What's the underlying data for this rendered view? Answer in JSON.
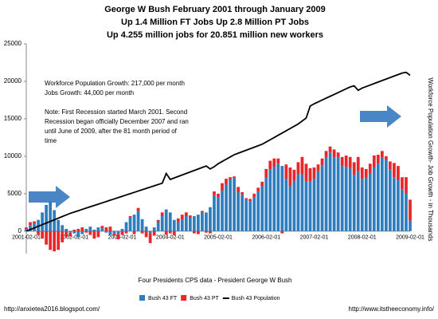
{
  "chart_data": {
    "type": "bar",
    "title_lines": [
      "George W Bush February 2001 through January 2009",
      "Up 1.4 Million FT Jobs Up 2.8 Million PT Jobs",
      "Up 4.255 million jobs for 20.851 million new workers"
    ],
    "x_label": "Four Presidents CPS data - President George W Bush",
    "y_label": "Workforce Population Growth- Job Growth - in Thousands",
    "annotations": [
      "Workforce Population Growth: 217,000 per month",
      "Jobs Growth:  44,000 per month",
      "Note: First Recession started March 2001. Second",
      "Recession began officially December 2007 and ran",
      "until June of 2009, after the 81 month period of",
      "time"
    ],
    "footer_left": "http://anxietea2016.blogspot.com/",
    "footer_right": "http://www.itstheeconomy.info/",
    "legend": "bottom",
    "ylim": [
      -3000,
      25000
    ],
    "yticks": [
      0,
      5000,
      10000,
      15000,
      20000,
      25000
    ],
    "categories": [
      "2001-02-01",
      null,
      null,
      null,
      null,
      null,
      null,
      null,
      null,
      null,
      null,
      null,
      "2002-02-01",
      null,
      null,
      null,
      null,
      null,
      null,
      null,
      null,
      null,
      null,
      null,
      "2003-02-01",
      null,
      null,
      null,
      null,
      null,
      null,
      null,
      null,
      null,
      null,
      null,
      "2004-02-01",
      null,
      null,
      null,
      null,
      null,
      null,
      null,
      null,
      null,
      null,
      null,
      "2005-02-01",
      null,
      null,
      null,
      null,
      null,
      null,
      null,
      null,
      null,
      null,
      null,
      "2006-02-01",
      null,
      null,
      null,
      null,
      null,
      null,
      null,
      null,
      null,
      null,
      null,
      "2007-02-01",
      null,
      null,
      null,
      null,
      null,
      null,
      null,
      null,
      null,
      null,
      null,
      "2008-02-01",
      null,
      null,
      null,
      null,
      null,
      null,
      null,
      null,
      null,
      null,
      null,
      "2009-02-01"
    ],
    "series": [
      {
        "name": "Bush 43 FT",
        "color": "#2e7ebf",
        "kind": "bar",
        "values": [
          300,
          800,
          1000,
          1500,
          2500,
          3500,
          4000,
          2800,
          1500,
          800,
          300,
          -200,
          -300,
          -800,
          -400,
          300,
          600,
          200,
          500,
          400,
          -200,
          -500,
          -300,
          -400,
          300,
          1200,
          1800,
          2200,
          2700,
          1600,
          600,
          -300,
          500,
          1200,
          2000,
          2900,
          2500,
          1500,
          1200,
          1500,
          2000,
          1800,
          2000,
          2200,
          2500,
          2500,
          3200,
          4800,
          4500,
          5400,
          6200,
          6900,
          7100,
          5200,
          4900,
          4200,
          4000,
          4500,
          5300,
          6000,
          7100,
          8200,
          8600,
          9000,
          8700,
          7000,
          6000,
          6700,
          7600,
          7600,
          6700,
          6600,
          7000,
          8000,
          8800,
          9800,
          10500,
          9800,
          9800,
          8700,
          8600,
          8400,
          7500,
          8000,
          7000,
          7100,
          7700,
          8500,
          9000,
          9800,
          9500,
          8200,
          7200,
          6800,
          5600,
          5000,
          1400
        ]
      },
      {
        "name": "Bush 43 PT",
        "color": "#e8262b",
        "kind": "bar",
        "values": [
          200,
          400,
          300,
          -500,
          -1000,
          -1800,
          -2500,
          -2700,
          -2500,
          -1500,
          -800,
          -500,
          200,
          300,
          500,
          -200,
          -500,
          -1000,
          -800,
          300,
          500,
          600,
          -300,
          -700,
          -500,
          -300,
          200,
          -400,
          400,
          -300,
          -800,
          -1300,
          -600,
          300,
          500,
          -500,
          -300,
          -500,
          500,
          700,
          500,
          300,
          -300,
          -400,
          200,
          -200,
          -300,
          500,
          500,
          1000,
          800,
          300,
          200,
          700,
          300,
          200,
          300,
          500,
          500,
          600,
          1200,
          1200,
          1100,
          700,
          -300,
          1900,
          2500,
          1500,
          1600,
          2300,
          2300,
          1800,
          1500,
          900,
          900,
          900,
          800,
          1100,
          700,
          1200,
          1500,
          1500,
          1700,
          1900,
          1500,
          1200,
          1300,
          1600,
          1200,
          900,
          500,
          1100,
          1900,
          1900,
          1600,
          2200,
          2800
        ]
      },
      {
        "name": "Bush 43 Population",
        "color": "#000000",
        "kind": "line",
        "values": [
          0,
          210,
          430,
          650,
          870,
          1080,
          1300,
          1510,
          1730,
          1950,
          2160,
          2380,
          2550,
          2720,
          2900,
          3080,
          3250,
          3430,
          3600,
          3780,
          3950,
          4130,
          4300,
          4480,
          4650,
          4830,
          5000,
          5180,
          5350,
          5530,
          5700,
          5880,
          6050,
          6230,
          6400,
          7700,
          6900,
          7100,
          7300,
          7500,
          7700,
          7900,
          8100,
          8300,
          8500,
          8700,
          8300,
          8600,
          9000,
          9300,
          9600,
          9900,
          10200,
          10400,
          10600,
          10800,
          11000,
          11200,
          11400,
          11600,
          11900,
          12200,
          12500,
          12800,
          13100,
          13400,
          13700,
          14000,
          14300,
          14700,
          15100,
          16700,
          17000,
          17250,
          17500,
          17750,
          18000,
          18250,
          18500,
          18750,
          19000,
          19250,
          19400,
          18800,
          19100,
          19300,
          19500,
          19700,
          19900,
          20100,
          20300,
          20500,
          20700,
          20900,
          21100,
          21200,
          20800
        ]
      }
    ]
  }
}
